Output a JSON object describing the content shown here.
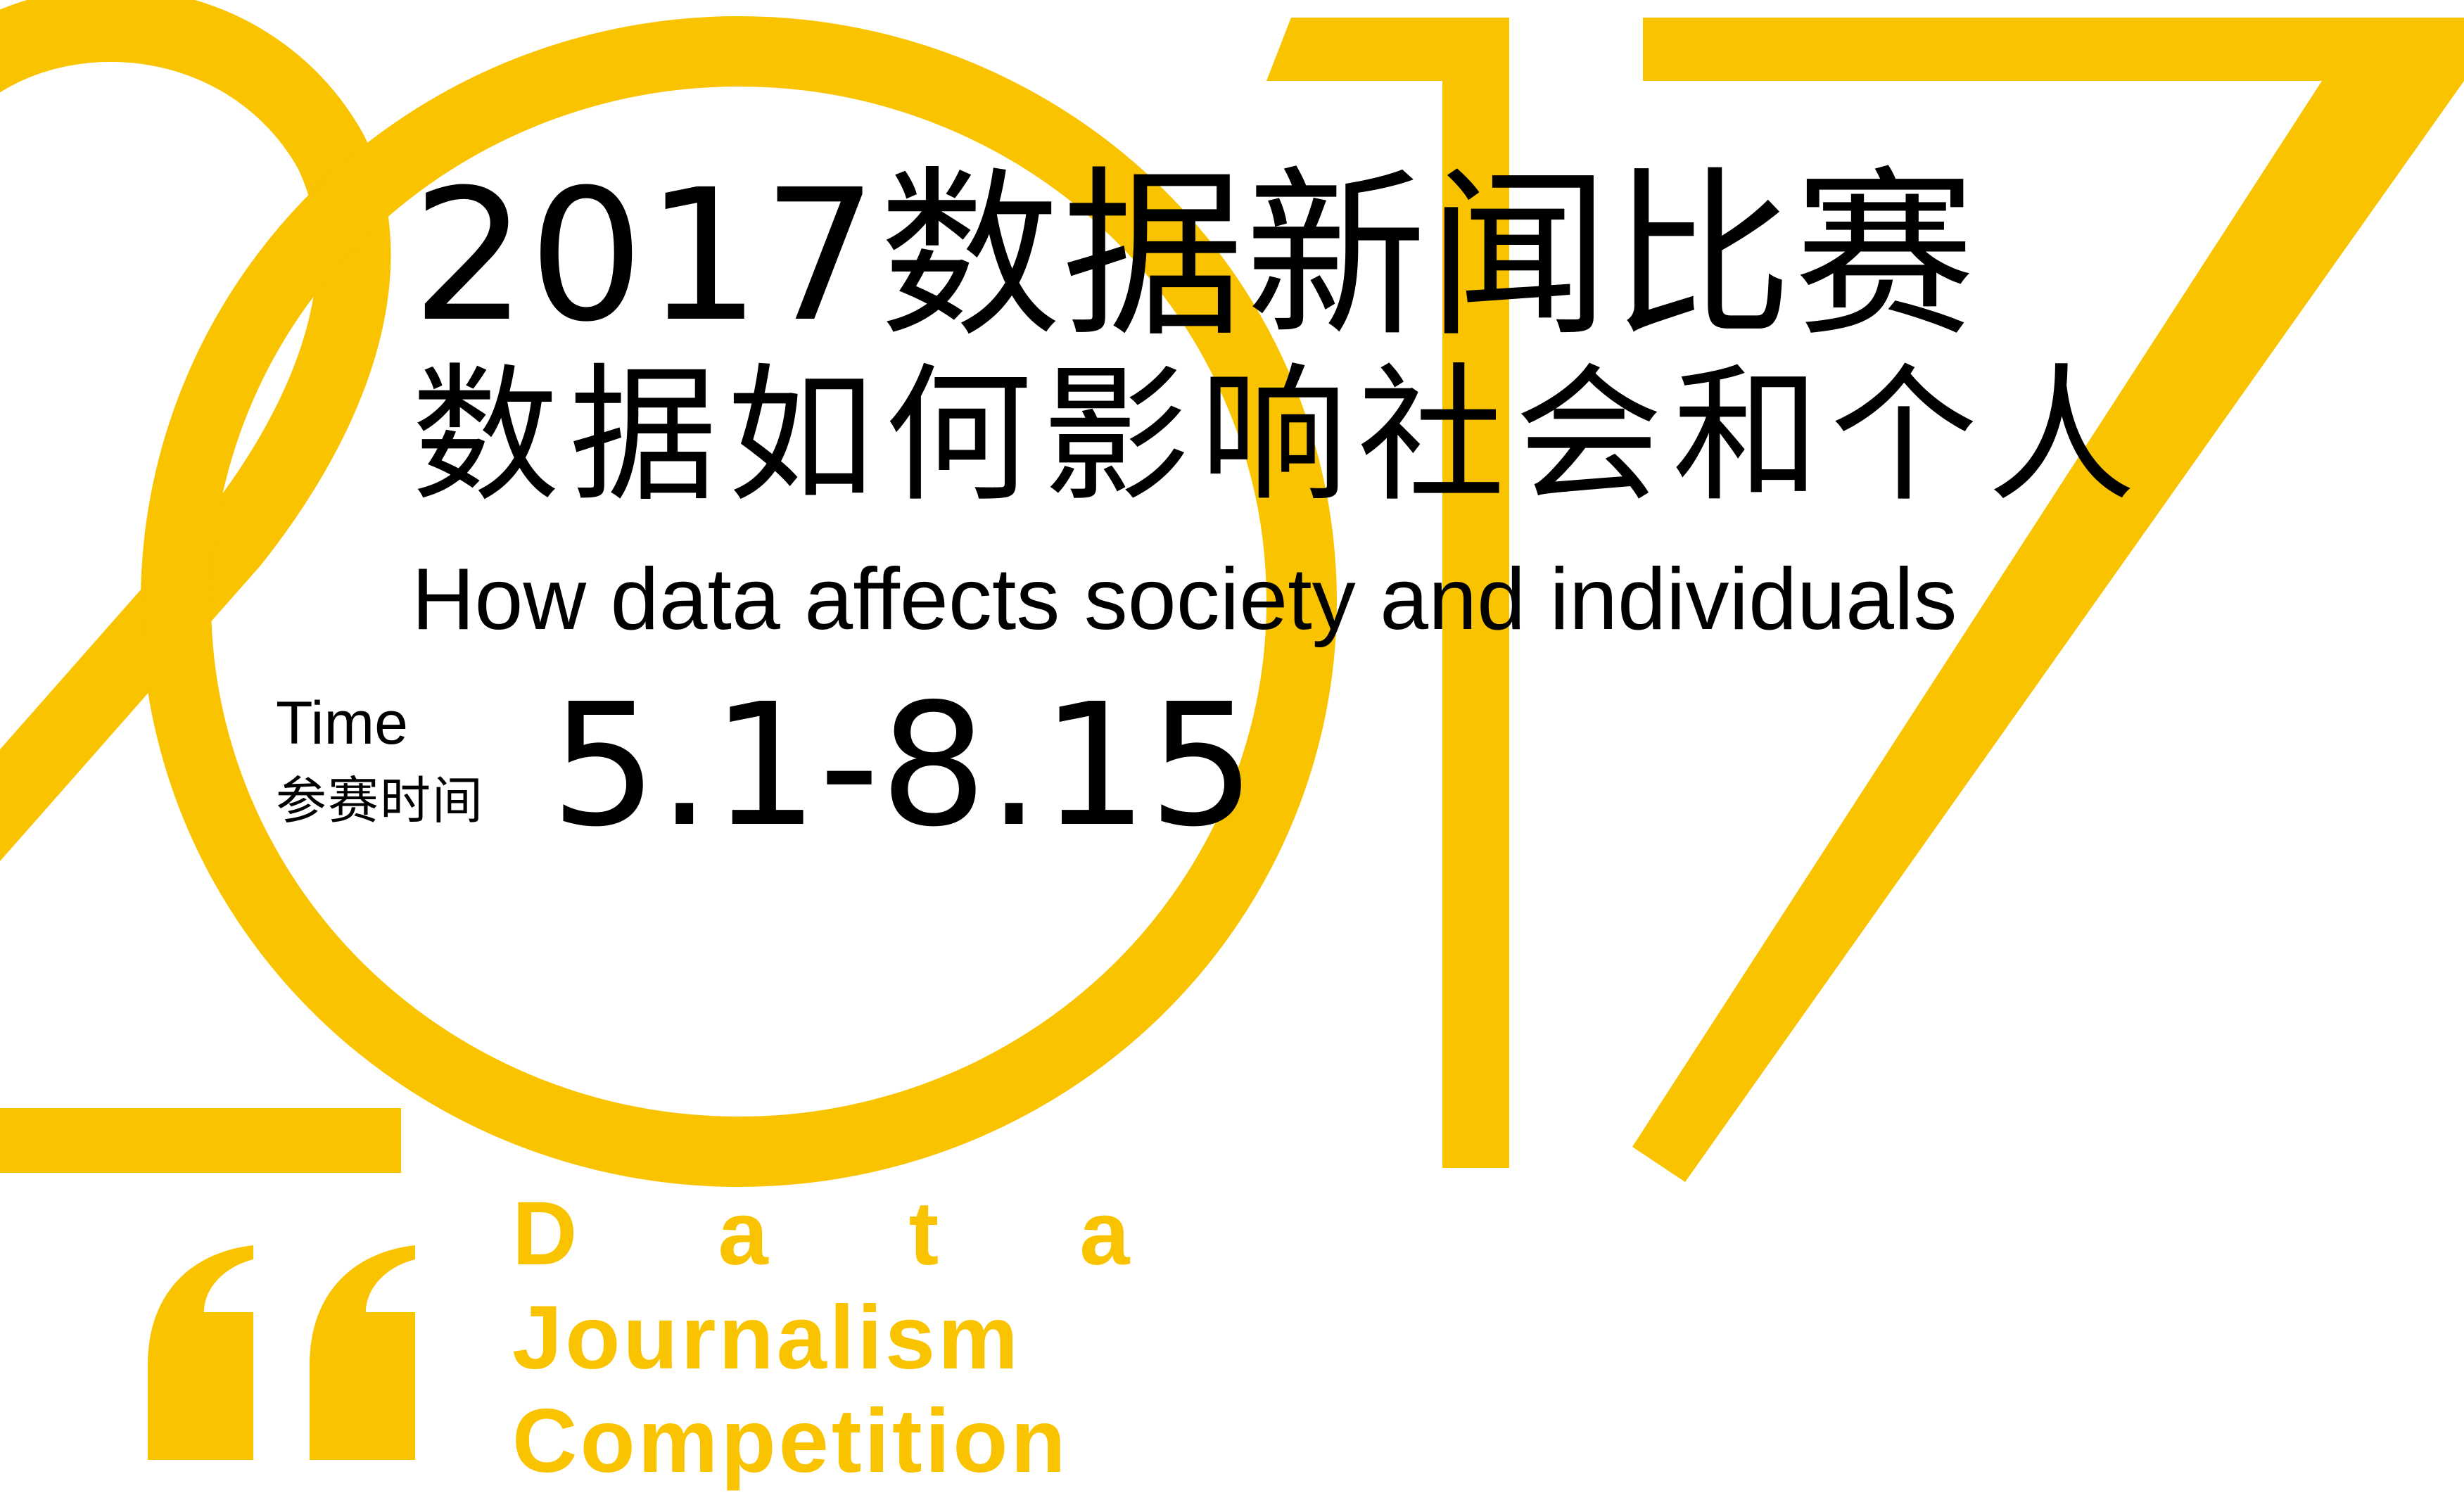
{
  "poster": {
    "background_color": "#ffffff",
    "accent_color": "#f9c300",
    "text_color": "#000000",
    "big_year": "2017",
    "title_cn": "2017数据新闻比赛",
    "subtitle_cn": "数据如何影响社会和个人",
    "subtitle_en": "How data affects society and individuals",
    "time_label_en": "Time",
    "time_label_cn": "参赛时间",
    "date_range": "5.1-8.15",
    "english_words": {
      "data": "Data",
      "journalism": "Journalism",
      "competition": "Competition"
    },
    "quote_mark_icon": "left-double-quote-icon"
  }
}
